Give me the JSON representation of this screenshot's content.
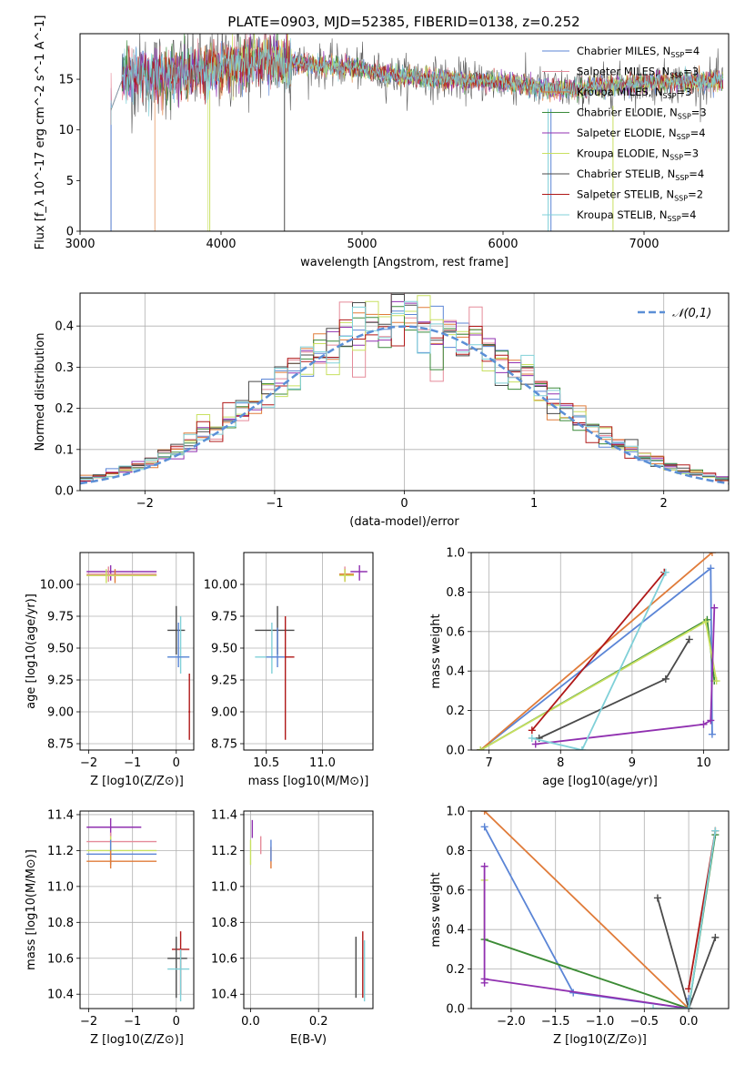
{
  "figure_title": "PLATE=0903, MJD=52385, FIBERID=0138, z=0.252",
  "models": [
    {
      "name": "Chabrier MILES",
      "nssp": "4",
      "color": "#5b85d6"
    },
    {
      "name": "Salpeter MILES",
      "nssp": "3",
      "color": "#e58b9a"
    },
    {
      "name": "Kroupa MILES",
      "nssp": "3",
      "color": "#e07b39"
    },
    {
      "name": "Chabrier ELODIE",
      "nssp": "3",
      "color": "#3a8a3a"
    },
    {
      "name": "Salpeter ELODIE",
      "nssp": "4",
      "color": "#9030b0"
    },
    {
      "name": "Kroupa ELODIE",
      "nssp": "3",
      "color": "#c8e060"
    },
    {
      "name": "Chabrier STELIB",
      "nssp": "4",
      "color": "#4a4a4a"
    },
    {
      "name": "Salpeter STELIB",
      "nssp": "2",
      "color": "#b01818"
    },
    {
      "name": "Kroupa STELIB",
      "nssp": "4",
      "color": "#80d0d8"
    }
  ],
  "chart_data": [
    {
      "id": "spectrum",
      "type": "line",
      "xlabel": "wavelength [Angstrom, rest frame]",
      "ylabel": "Flux [f_λ 10^-17 erg cm^-2 s^-1 A^-1]",
      "xlim": [
        3000,
        7600
      ],
      "ylim": [
        0,
        19.5
      ],
      "xticks": [
        3000,
        4000,
        5000,
        6000,
        7000
      ],
      "yticks": [
        0,
        5,
        10,
        15
      ],
      "grid": false,
      "legend": "right",
      "continuum": {
        "x": [
          3220,
          3300,
          3500,
          3700,
          3900,
          4100,
          4300,
          4500,
          4700,
          4900,
          5100,
          5300,
          5500,
          5700,
          5900,
          6100,
          6300,
          6500,
          6700,
          6900,
          7100,
          7300,
          7550
        ],
        "y": [
          12.5,
          15.5,
          15.3,
          15.6,
          15.8,
          16.6,
          16.9,
          16.7,
          16.3,
          16.3,
          15.6,
          15.3,
          15.1,
          14.9,
          14.8,
          14.5,
          14.1,
          14.0,
          14.3,
          14.5,
          14.7,
          14.7,
          14.9
        ]
      }
    },
    {
      "id": "residuals",
      "type": "histogram",
      "xlabel": "(data-model)/error",
      "ylabel": "Normed distribution",
      "xlim": [
        -2.5,
        2.5
      ],
      "ylim": [
        0,
        0.48
      ],
      "xticks": [
        -2,
        -1,
        0,
        1,
        2
      ],
      "yticks": [
        0.0,
        0.1,
        0.2,
        0.3,
        0.4
      ],
      "grid": true,
      "legend": "top-right",
      "reference_label": "𝒩(0,1)",
      "reference_color": "#5b8fd6",
      "bin_width": 0.1
    },
    {
      "id": "age_vs_Z",
      "type": "errorbar",
      "xlabel": "Z [log10(Z/Z⊙)]",
      "ylabel": "age [log10(age/yr)]",
      "xlim": [
        -2.2,
        0.4
      ],
      "ylim": [
        8.7,
        10.25
      ],
      "xticks": [
        -2,
        -1,
        0
      ],
      "yticks": [
        8.75,
        9.0,
        9.25,
        9.5,
        9.75,
        10.0
      ],
      "grid": true,
      "points": [
        {
          "m": 4,
          "x": -1.5,
          "xlo": -2.05,
          "xhi": -0.45,
          "y": 10.1,
          "ylo": 10.03,
          "yhi": 10.15
        },
        {
          "m": 1,
          "x": -1.55,
          "xlo": -2.05,
          "xhi": -0.45,
          "y": 10.08,
          "ylo": 10.02,
          "yhi": 10.14
        },
        {
          "m": 2,
          "x": -1.4,
          "xlo": -2.05,
          "xhi": -0.45,
          "y": 10.07,
          "ylo": 10.01,
          "yhi": 10.12
        },
        {
          "m": 5,
          "x": -1.6,
          "xlo": -2.05,
          "xhi": -0.45,
          "y": 10.07,
          "ylo": 10.01,
          "yhi": 10.12
        },
        {
          "m": 6,
          "x": 0.0,
          "xlo": -0.2,
          "xhi": 0.2,
          "y": 9.64,
          "ylo": 9.45,
          "yhi": 9.83
        },
        {
          "m": 8,
          "x": 0.1,
          "xlo": -0.2,
          "xhi": 0.3,
          "y": 9.43,
          "ylo": 9.3,
          "yhi": 9.75
        },
        {
          "m": 0,
          "x": 0.05,
          "xlo": -0.2,
          "xhi": 0.3,
          "y": 9.43,
          "ylo": 9.35,
          "yhi": 9.7
        },
        {
          "m": 7,
          "x": 0.3,
          "xlo": 0.28,
          "xhi": 0.32,
          "y": 9.0,
          "ylo": 8.78,
          "yhi": 9.3
        }
      ]
    },
    {
      "id": "age_vs_mass",
      "type": "errorbar",
      "xlabel": "mass [log10(M/M⊙)]",
      "ylabel": "",
      "xlim": [
        10.3,
        11.45
      ],
      "ylim": [
        8.7,
        10.25
      ],
      "xticks": [
        10.5,
        11.0
      ],
      "yticks": [
        8.75,
        9.0,
        9.25,
        9.5,
        9.75,
        10.0
      ],
      "grid": true,
      "points": [
        {
          "m": 6,
          "x": 10.6,
          "xlo": 10.4,
          "xhi": 10.75,
          "y": 9.64,
          "ylo": 9.45,
          "yhi": 9.83
        },
        {
          "m": 8,
          "x": 10.55,
          "xlo": 10.4,
          "xhi": 10.65,
          "y": 9.43,
          "ylo": 9.3,
          "yhi": 9.7
        },
        {
          "m": 0,
          "x": 10.6,
          "xlo": 10.5,
          "xhi": 10.67,
          "y": 9.43,
          "ylo": 9.35,
          "yhi": 9.66
        },
        {
          "m": 7,
          "x": 10.67,
          "xlo": 10.67,
          "xhi": 10.75,
          "y": 9.43,
          "ylo": 8.78,
          "yhi": 9.75
        },
        {
          "m": 4,
          "x": 11.33,
          "xlo": 11.25,
          "xhi": 11.4,
          "y": 10.1,
          "ylo": 10.03,
          "yhi": 10.15
        },
        {
          "m": 1,
          "x": 11.2,
          "xlo": 11.15,
          "xhi": 11.28,
          "y": 10.08,
          "ylo": 10.03,
          "yhi": 10.14
        },
        {
          "m": 2,
          "x": 11.2,
          "xlo": 11.15,
          "xhi": 11.28,
          "y": 10.08,
          "ylo": 10.02,
          "yhi": 10.12
        },
        {
          "m": 5,
          "x": 11.2,
          "xlo": 11.15,
          "xhi": 11.28,
          "y": 10.07,
          "ylo": 10.02,
          "yhi": 10.12
        }
      ]
    },
    {
      "id": "mass_weight_vs_age",
      "type": "line",
      "xlabel": "age [log10(age/yr)]",
      "ylabel": "mass weight",
      "xlim": [
        6.75,
        10.35
      ],
      "ylim": [
        0,
        1.0
      ],
      "xticks": [
        7,
        8,
        9,
        10
      ],
      "yticks": [
        0.0,
        0.2,
        0.4,
        0.6,
        0.8,
        1.0
      ],
      "grid": true,
      "series": [
        {
          "m": 0,
          "x": [
            6.88,
            10.1,
            10.12
          ],
          "y": [
            0.0,
            0.92,
            0.08
          ]
        },
        {
          "m": 2,
          "x": [
            6.88,
            10.12
          ],
          "y": [
            0.0,
            1.0
          ]
        },
        {
          "m": 3,
          "x": [
            6.88,
            10.05,
            10.15
          ],
          "y": [
            0.0,
            0.66,
            0.35
          ]
        },
        {
          "m": 5,
          "x": [
            6.88,
            10.03,
            10.18
          ],
          "y": [
            0.0,
            0.65,
            0.35
          ]
        },
        {
          "m": 4,
          "x": [
            7.65,
            10.0,
            10.1,
            10.15
          ],
          "y": [
            0.03,
            0.13,
            0.15,
            0.72
          ]
        },
        {
          "m": 6,
          "x": [
            7.7,
            9.47,
            9.8
          ],
          "y": [
            0.06,
            0.36,
            0.56
          ]
        },
        {
          "m": 7,
          "x": [
            7.6,
            9.45
          ],
          "y": [
            0.1,
            0.9
          ]
        },
        {
          "m": 8,
          "x": [
            7.6,
            8.3,
            9.47
          ],
          "y": [
            0.06,
            0.0,
            0.9
          ]
        }
      ]
    },
    {
      "id": "mass_vs_Z",
      "type": "errorbar",
      "xlabel": "Z [log10(Z/Z⊙)]",
      "ylabel": "mass [log10(M/M⊙)]",
      "xlim": [
        -2.2,
        0.4
      ],
      "ylim": [
        10.32,
        11.42
      ],
      "xticks": [
        -2,
        -1,
        0
      ],
      "yticks": [
        10.4,
        10.6,
        10.8,
        11.0,
        11.2,
        11.4
      ],
      "grid": true,
      "points": [
        {
          "m": 4,
          "x": -1.5,
          "xlo": -2.05,
          "xhi": -0.8,
          "y": 11.33,
          "ylo": 11.28,
          "yhi": 11.38
        },
        {
          "m": 1,
          "x": -1.5,
          "xlo": -2.05,
          "xhi": -0.45,
          "y": 11.25,
          "ylo": 11.2,
          "yhi": 11.3
        },
        {
          "m": 5,
          "x": -1.5,
          "xlo": -2.05,
          "xhi": -0.45,
          "y": 11.2,
          "ylo": 11.12,
          "yhi": 11.28
        },
        {
          "m": 0,
          "x": -1.5,
          "xlo": -2.05,
          "xhi": -0.45,
          "y": 11.18,
          "ylo": 11.12,
          "yhi": 11.26
        },
        {
          "m": 2,
          "x": -1.5,
          "xlo": -2.05,
          "xhi": -0.45,
          "y": 11.14,
          "ylo": 11.1,
          "yhi": 11.2
        },
        {
          "m": 7,
          "x": 0.1,
          "xlo": -0.1,
          "xhi": 0.3,
          "y": 10.65,
          "ylo": 10.4,
          "yhi": 10.75
        },
        {
          "m": 6,
          "x": 0.0,
          "xlo": -0.2,
          "xhi": 0.25,
          "y": 10.6,
          "ylo": 10.38,
          "yhi": 10.72
        },
        {
          "m": 8,
          "x": 0.1,
          "xlo": -0.2,
          "xhi": 0.3,
          "y": 10.54,
          "ylo": 10.36,
          "yhi": 10.65
        }
      ]
    },
    {
      "id": "mass_vs_ebv",
      "type": "errorbar",
      "xlabel": "E(B-V)",
      "ylabel": "",
      "xlim": [
        -0.02,
        0.36
      ],
      "ylim": [
        10.32,
        11.42
      ],
      "xticks": [
        0.0,
        0.2
      ],
      "yticks": [
        10.4,
        10.6,
        10.8,
        11.0,
        11.2,
        11.4
      ],
      "grid": true,
      "points": [
        {
          "m": 4,
          "x": 0.005,
          "xlo": 0.005,
          "xhi": 0.005,
          "y": 11.32,
          "ylo": 11.27,
          "yhi": 11.37
        },
        {
          "m": 5,
          "x": 0.0,
          "xlo": 0.0,
          "xhi": 0.0,
          "y": 11.2,
          "ylo": 11.12,
          "yhi": 11.26
        },
        {
          "m": 1,
          "x": 0.03,
          "xlo": 0.03,
          "xhi": 0.03,
          "y": 11.23,
          "ylo": 11.18,
          "yhi": 11.28
        },
        {
          "m": 2,
          "x": 0.06,
          "xlo": 0.06,
          "xhi": 0.06,
          "y": 11.16,
          "ylo": 11.1,
          "yhi": 11.22
        },
        {
          "m": 0,
          "x": 0.06,
          "xlo": 0.06,
          "xhi": 0.06,
          "y": 11.2,
          "ylo": 11.14,
          "yhi": 11.26
        },
        {
          "m": 6,
          "x": 0.31,
          "xlo": 0.31,
          "xhi": 0.31,
          "y": 10.55,
          "ylo": 10.38,
          "yhi": 10.72
        },
        {
          "m": 7,
          "x": 0.33,
          "xlo": 0.33,
          "xhi": 0.33,
          "y": 10.55,
          "ylo": 10.38,
          "yhi": 10.75
        },
        {
          "m": 8,
          "x": 0.335,
          "xlo": 0.335,
          "xhi": 0.335,
          "y": 10.52,
          "ylo": 10.36,
          "yhi": 10.7
        }
      ]
    },
    {
      "id": "mass_weight_vs_Z",
      "type": "line",
      "xlabel": "Z [log10(Z/Z⊙)]",
      "ylabel": "mass weight",
      "xlim": [
        -2.45,
        0.45
      ],
      "ylim": [
        0,
        1.0
      ],
      "xticks": [
        -2.0,
        -1.5,
        -1.0,
        -0.5,
        0.0
      ],
      "yticks": [
        0.0,
        0.2,
        0.4,
        0.6,
        0.8,
        1.0
      ],
      "grid": true,
      "series": [
        {
          "m": 2,
          "x": [
            -2.3,
            0.0
          ],
          "y": [
            1.0,
            0.0
          ]
        },
        {
          "m": 0,
          "x": [
            -2.3,
            -1.3,
            0.0,
            0.0
          ],
          "y": [
            0.92,
            0.08,
            0.0,
            0.05
          ]
        },
        {
          "m": 5,
          "x": [
            -2.3,
            -2.3,
            0.0,
            0.3
          ],
          "y": [
            0.65,
            0.35,
            0.0,
            0.9
          ]
        },
        {
          "m": 3,
          "x": [
            -2.3,
            0.0,
            0.3
          ],
          "y": [
            0.35,
            0.0,
            0.88
          ]
        },
        {
          "m": 4,
          "x": [
            -2.3,
            -2.3,
            -2.3,
            0.0
          ],
          "y": [
            0.72,
            0.13,
            0.15,
            0.0
          ]
        },
        {
          "m": 6,
          "x": [
            -0.35,
            0.0,
            0.3
          ],
          "y": [
            0.56,
            0.0,
            0.36
          ]
        },
        {
          "m": 7,
          "x": [
            0.0,
            0.3
          ],
          "y": [
            0.1,
            0.9
          ]
        },
        {
          "m": 8,
          "x": [
            -0.4,
            0.0,
            0.3
          ],
          "y": [
            0.0,
            0.0,
            0.9
          ]
        }
      ]
    }
  ]
}
